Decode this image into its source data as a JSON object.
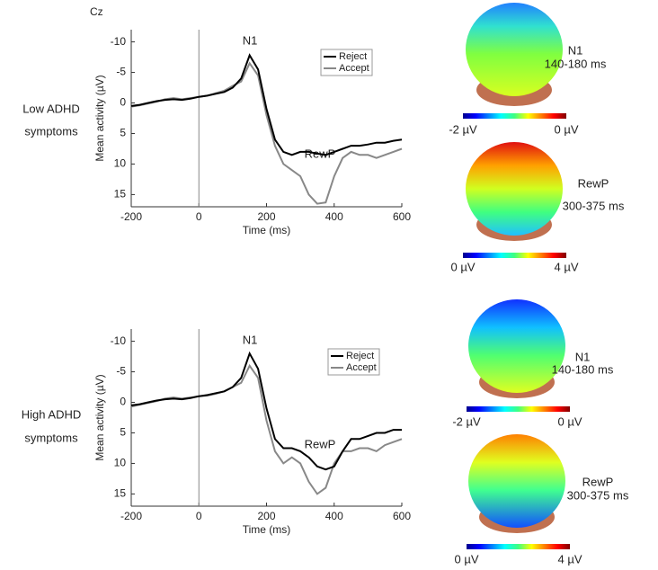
{
  "chart_data": [
    {
      "type": "line",
      "panel_label": "Cz",
      "peak_labels": [
        "N1",
        "RewP"
      ],
      "xlabel": "Time (ms)",
      "ylabel": "Mean activity (µV)",
      "x": [
        -200,
        -175,
        -150,
        -125,
        -100,
        -75,
        -50,
        -25,
        0,
        25,
        50,
        75,
        100,
        125,
        150,
        175,
        200,
        225,
        250,
        275,
        300,
        325,
        350,
        375,
        400,
        425,
        450,
        475,
        500,
        525,
        550,
        575,
        600
      ],
      "series": [
        {
          "name": "Reject",
          "color": "#000000",
          "values": [
            0.5,
            0.3,
            0,
            -0.3,
            -0.5,
            -0.6,
            -0.5,
            -0.7,
            -1,
            -1.2,
            -1.5,
            -1.8,
            -2.5,
            -4,
            -7.8,
            -5.5,
            1,
            6,
            8,
            8.5,
            8,
            8,
            8.3,
            8.5,
            8,
            7.5,
            7,
            7,
            6.8,
            6.5,
            6.5,
            6.2,
            6
          ]
        },
        {
          "name": "Accept",
          "color": "#888888",
          "values": [
            0.6,
            0.4,
            0.1,
            -0.2,
            -0.6,
            -0.8,
            -0.6,
            -0.8,
            -1,
            -1.2,
            -1.6,
            -2,
            -2.8,
            -3.5,
            -6.5,
            -4.5,
            2,
            7,
            10,
            11,
            12,
            15,
            16.5,
            16.3,
            12,
            9,
            8,
            8.5,
            8.5,
            9,
            8.5,
            8,
            7.5
          ]
        }
      ],
      "xlim": [
        -200,
        600
      ],
      "xticks": [
        -200,
        0,
        200,
        400,
        600
      ],
      "ylim": [
        -12,
        17
      ],
      "yticks": [
        -10,
        -5,
        0,
        5,
        10,
        15
      ],
      "y_reversed": true,
      "vline": 0
    },
    {
      "type": "line",
      "peak_labels": [
        "N1",
        "RewP"
      ],
      "xlabel": "Time (ms)",
      "ylabel": "Mean activity (µV)",
      "x": [
        -200,
        -175,
        -150,
        -125,
        -100,
        -75,
        -50,
        -25,
        0,
        25,
        50,
        75,
        100,
        125,
        150,
        175,
        200,
        225,
        250,
        275,
        300,
        325,
        350,
        375,
        400,
        425,
        450,
        475,
        500,
        525,
        550,
        575,
        600
      ],
      "series": [
        {
          "name": "Reject",
          "color": "#000000",
          "values": [
            0.5,
            0.3,
            0,
            -0.3,
            -0.5,
            -0.6,
            -0.5,
            -0.7,
            -1,
            -1.2,
            -1.5,
            -1.8,
            -2.5,
            -4,
            -8,
            -5.5,
            1,
            6,
            7.5,
            7.5,
            8,
            9,
            10.5,
            11,
            10.5,
            8,
            6,
            6,
            5.5,
            5,
            5,
            4.5,
            4.5
          ]
        },
        {
          "name": "Accept",
          "color": "#888888",
          "values": [
            0.7,
            0.4,
            0.1,
            -0.2,
            -0.6,
            -0.8,
            -0.6,
            -0.8,
            -1,
            -1.1,
            -1.4,
            -1.8,
            -2.5,
            -3.2,
            -6,
            -4,
            3,
            8,
            10,
            9,
            10,
            13,
            15,
            14,
            10,
            8,
            8,
            7.5,
            7.5,
            8,
            7,
            6.5,
            6
          ]
        }
      ],
      "xlim": [
        -200,
        600
      ],
      "xticks": [
        -200,
        0,
        200,
        400,
        600
      ],
      "ylim": [
        -12,
        17
      ],
      "yticks": [
        -10,
        -5,
        0,
        5,
        10,
        15
      ],
      "y_reversed": true,
      "vline": 0
    }
  ],
  "rows": [
    {
      "label": [
        "Low ADHD",
        "symptoms"
      ],
      "maps": [
        {
          "component": "N1",
          "window": "140-180 ms",
          "scale": [
            "-2 µV",
            "0 µV"
          ]
        },
        {
          "component": "RewP",
          "window": "300-375 ms",
          "scale": [
            "0 µV",
            "4 µV"
          ]
        }
      ]
    },
    {
      "label": [
        "High ADHD",
        "symptoms"
      ],
      "maps": [
        {
          "component": "N1",
          "window": "140-180 ms",
          "scale": [
            "-2 µV",
            "0 µV"
          ]
        },
        {
          "component": "RewP",
          "window": "300-375 ms",
          "scale": [
            "0 µV",
            "4 µV"
          ]
        }
      ]
    }
  ]
}
